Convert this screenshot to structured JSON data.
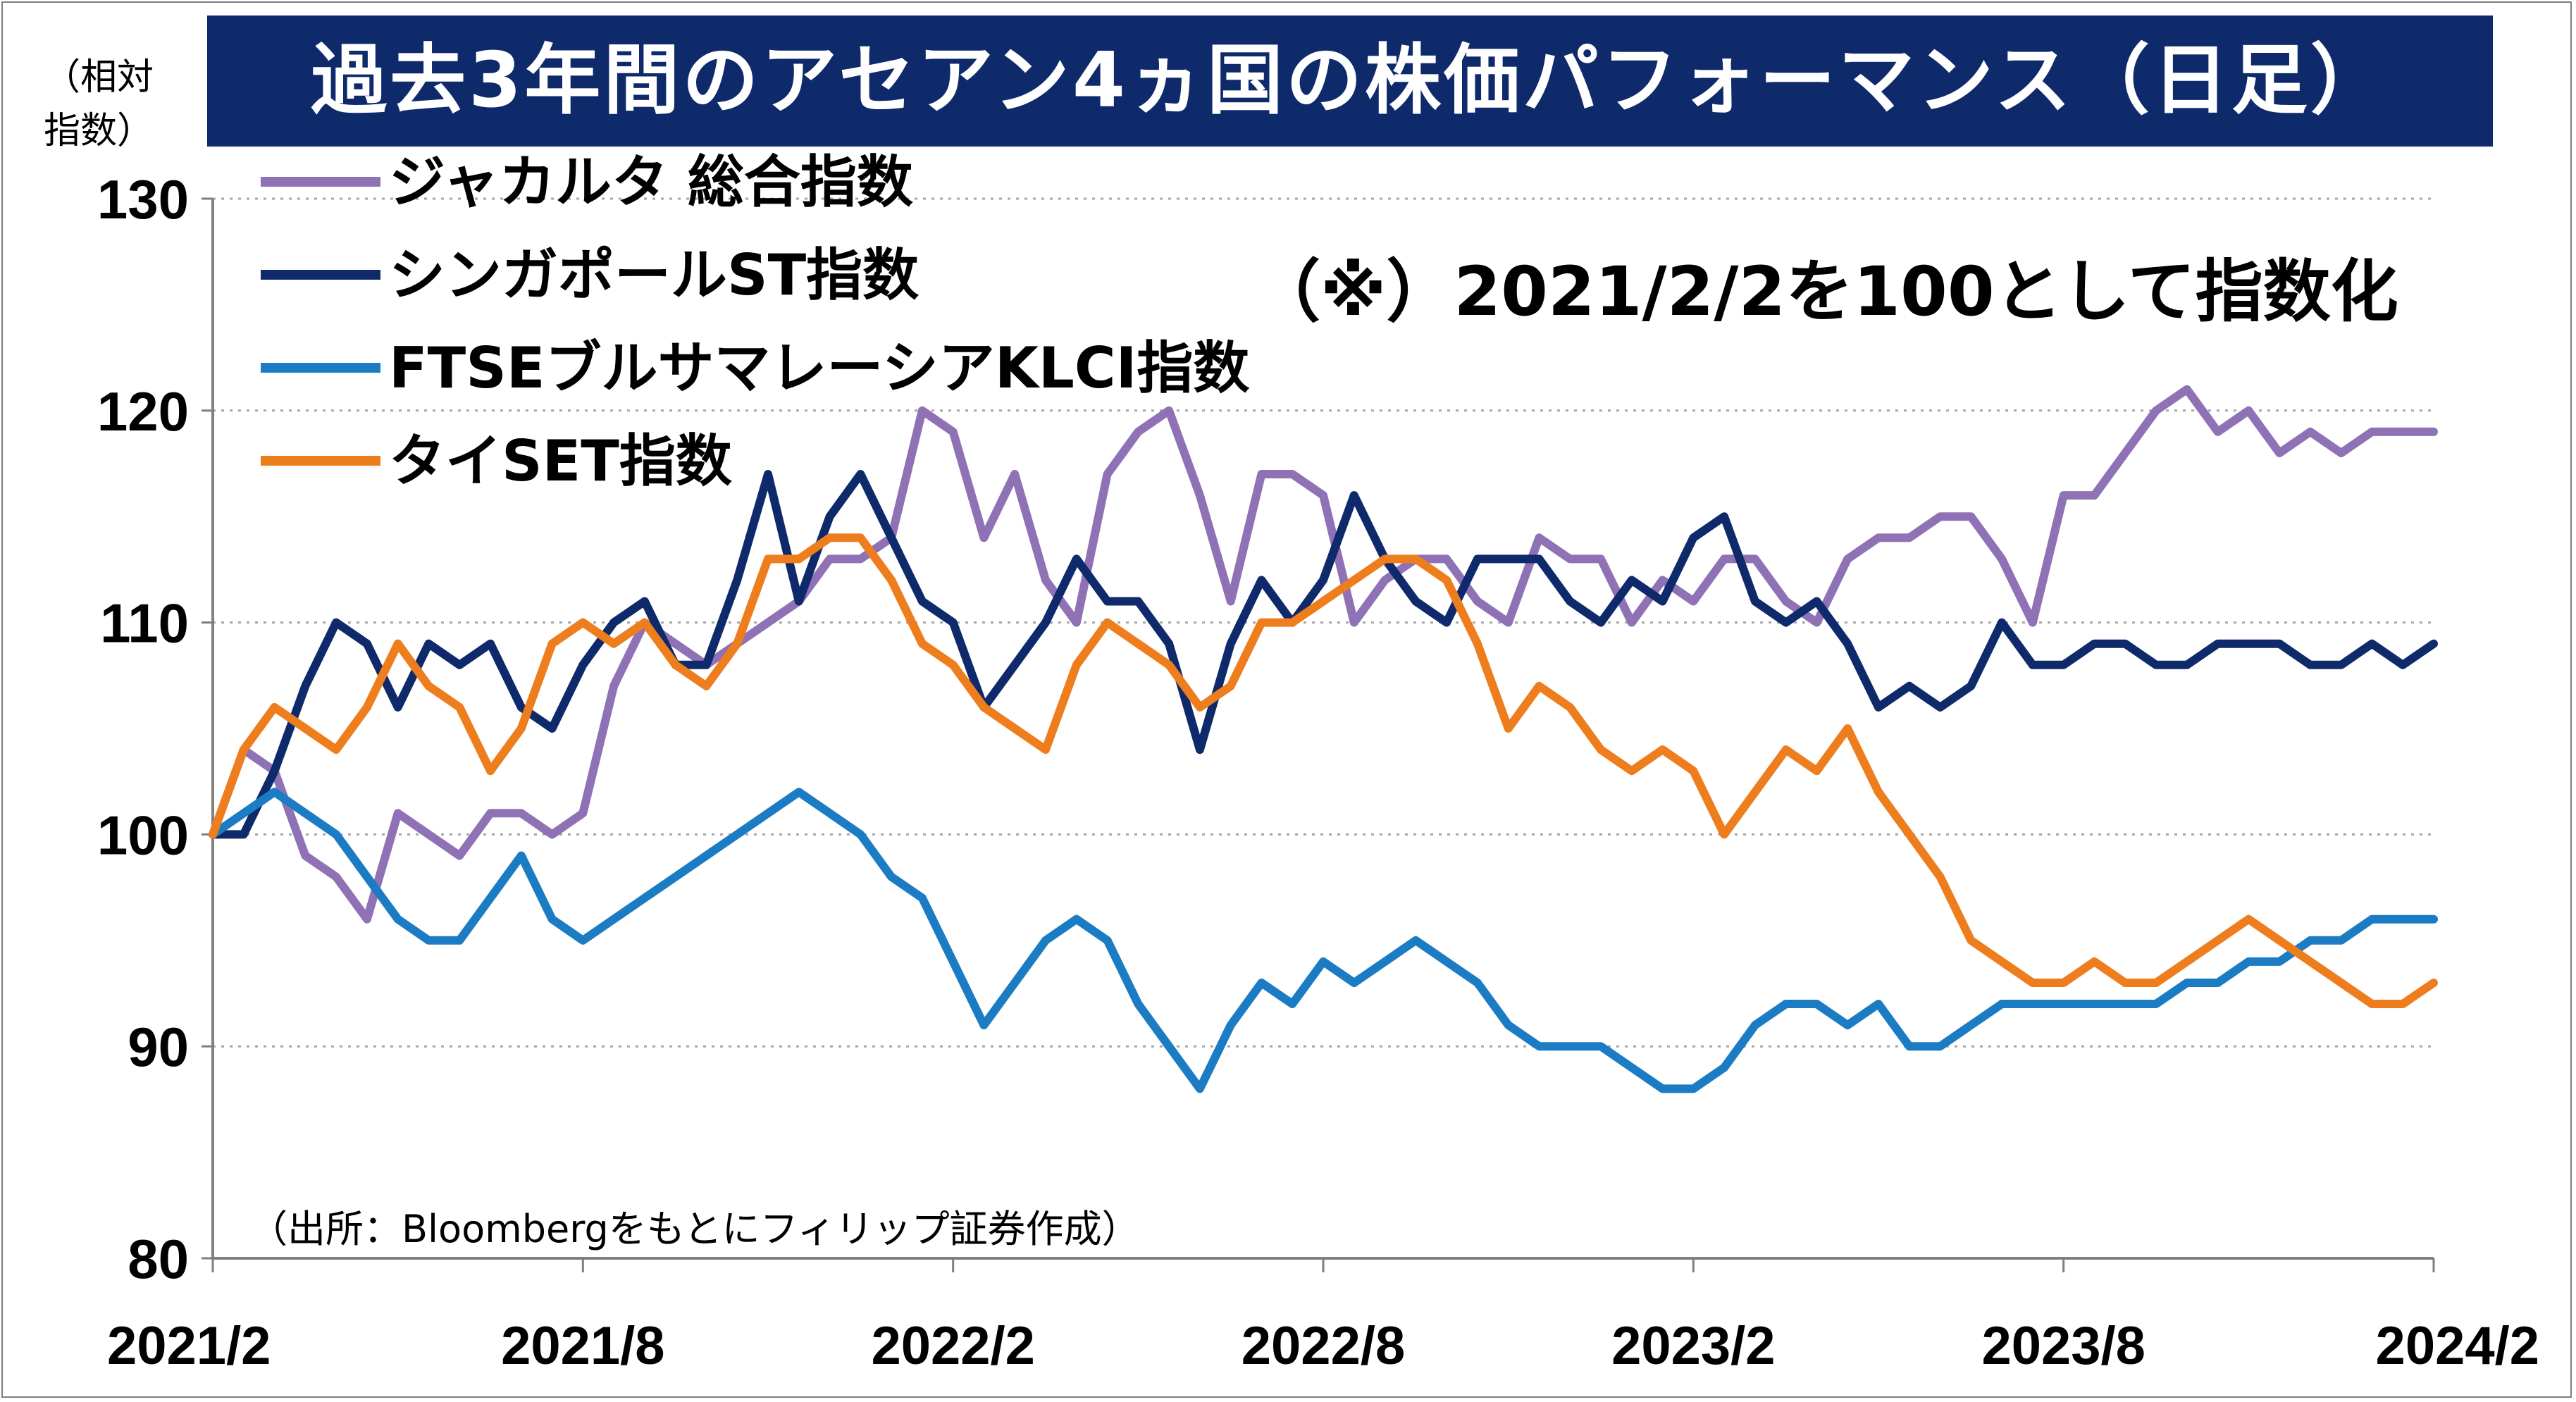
{
  "title": "過去3年間のアセアン4ヵ国の株価パフォーマンス（日足）",
  "y_unit_label": [
    "（相対",
    "指数）"
  ],
  "note": "（※）2021/2/2を100として指数化",
  "source": "（出所：Bloombergをもとにフィリップ証券作成）",
  "colors": {
    "title_bg": "#0e2a6b",
    "jakarta": "#8f72b5",
    "singapore": "#0e2a6b",
    "malaysia": "#1b7cc4",
    "thai": "#ee7d1e",
    "grid": "#a6a6a6"
  },
  "chart_data": {
    "type": "line",
    "y_ticks": [
      "130",
      "120",
      "110",
      "100",
      "90",
      "80"
    ],
    "x_ticks": [
      "2021/2",
      "2021/8",
      "2022/2",
      "2022/8",
      "2023/2",
      "2023/8",
      "2024/2"
    ],
    "ylim": [
      80,
      130
    ],
    "xlim": [
      0,
      36
    ],
    "grid": "horizontal-dotted",
    "legend_position": "top-left",
    "series": [
      {
        "name": "ジャカルタ 総合指数",
        "color_key": "jakarta",
        "x": [
          0,
          0.5,
          1,
          1.5,
          2,
          2.5,
          3,
          3.5,
          4,
          4.5,
          5,
          5.5,
          6,
          6.5,
          7,
          7.5,
          8,
          8.5,
          9,
          9.5,
          10,
          10.5,
          11,
          11.5,
          12,
          12.5,
          13,
          13.5,
          14,
          14.5,
          15,
          15.5,
          16,
          16.5,
          17,
          17.5,
          18,
          18.5,
          19,
          19.5,
          20,
          20.5,
          21,
          21.5,
          22,
          22.5,
          23,
          23.5,
          24,
          24.5,
          25,
          25.5,
          26,
          26.5,
          27,
          27.5,
          28,
          28.5,
          29,
          29.5,
          30,
          30.5,
          31,
          31.5,
          32,
          32.5,
          33,
          33.5,
          34,
          34.5,
          35,
          35.5,
          36
        ],
        "values": [
          100,
          104,
          103,
          99,
          98,
          96,
          101,
          100,
          99,
          101,
          101,
          100,
          101,
          107,
          110,
          109,
          108,
          109,
          110,
          111,
          113,
          113,
          114,
          120,
          119,
          114,
          117,
          112,
          110,
          117,
          119,
          120,
          116,
          111,
          117,
          117,
          116,
          110,
          112,
          113,
          113,
          111,
          110,
          114,
          113,
          113,
          110,
          112,
          111,
          113,
          113,
          111,
          110,
          113,
          114,
          114,
          115,
          115,
          113,
          110,
          116,
          116,
          118,
          120,
          121,
          119,
          120,
          118,
          119,
          118,
          119,
          119,
          119
        ]
      },
      {
        "name": "シンガポールST指数",
        "color_key": "singapore",
        "x": [
          0,
          0.5,
          1,
          1.5,
          2,
          2.5,
          3,
          3.5,
          4,
          4.5,
          5,
          5.5,
          6,
          6.5,
          7,
          7.5,
          8,
          8.5,
          9,
          9.5,
          10,
          10.5,
          11,
          11.5,
          12,
          12.5,
          13,
          13.5,
          14,
          14.5,
          15,
          15.5,
          16,
          16.5,
          17,
          17.5,
          18,
          18.5,
          19,
          19.5,
          20,
          20.5,
          21,
          21.5,
          22,
          22.5,
          23,
          23.5,
          24,
          24.5,
          25,
          25.5,
          26,
          26.5,
          27,
          27.5,
          28,
          28.5,
          29,
          29.5,
          30,
          30.5,
          31,
          31.5,
          32,
          32.5,
          33,
          33.5,
          34,
          34.5,
          35,
          35.5,
          36
        ],
        "values": [
          100,
          100,
          103,
          107,
          110,
          109,
          106,
          109,
          108,
          109,
          106,
          105,
          108,
          110,
          111,
          108,
          108,
          112,
          117,
          111,
          115,
          117,
          114,
          111,
          110,
          106,
          108,
          110,
          113,
          111,
          111,
          109,
          104,
          109,
          112,
          110,
          112,
          116,
          113,
          111,
          110,
          113,
          113,
          113,
          111,
          110,
          112,
          111,
          114,
          115,
          111,
          110,
          111,
          109,
          106,
          107,
          106,
          107,
          110,
          108,
          108,
          109,
          109,
          108,
          108,
          109,
          109,
          109,
          108,
          108,
          109,
          108,
          109
        ]
      },
      {
        "name": "FTSEブルサマレーシアKLCI指数",
        "color_key": "malaysia",
        "x": [
          0,
          0.5,
          1,
          1.5,
          2,
          2.5,
          3,
          3.5,
          4,
          4.5,
          5,
          5.5,
          6,
          6.5,
          7,
          7.5,
          8,
          8.5,
          9,
          9.5,
          10,
          10.5,
          11,
          11.5,
          12,
          12.5,
          13,
          13.5,
          14,
          14.5,
          15,
          15.5,
          16,
          16.5,
          17,
          17.5,
          18,
          18.5,
          19,
          19.5,
          20,
          20.5,
          21,
          21.5,
          22,
          22.5,
          23,
          23.5,
          24,
          24.5,
          25,
          25.5,
          26,
          26.5,
          27,
          27.5,
          28,
          28.5,
          29,
          29.5,
          30,
          30.5,
          31,
          31.5,
          32,
          32.5,
          33,
          33.5,
          34,
          34.5,
          35,
          35.5,
          36
        ],
        "values": [
          100,
          101,
          102,
          101,
          100,
          98,
          96,
          95,
          95,
          97,
          99,
          96,
          95,
          96,
          97,
          98,
          99,
          100,
          101,
          102,
          101,
          100,
          98,
          97,
          94,
          91,
          93,
          95,
          96,
          95,
          92,
          90,
          88,
          91,
          93,
          92,
          94,
          93,
          94,
          95,
          94,
          93,
          91,
          90,
          90,
          90,
          89,
          88,
          88,
          89,
          91,
          92,
          92,
          91,
          92,
          90,
          90,
          91,
          92,
          92,
          92,
          92,
          92,
          92,
          93,
          93,
          94,
          94,
          95,
          95,
          96,
          96,
          96
        ]
      },
      {
        "name": "タイSET指数",
        "color_key": "thai",
        "x": [
          0,
          0.5,
          1,
          1.5,
          2,
          2.5,
          3,
          3.5,
          4,
          4.5,
          5,
          5.5,
          6,
          6.5,
          7,
          7.5,
          8,
          8.5,
          9,
          9.5,
          10,
          10.5,
          11,
          11.5,
          12,
          12.5,
          13,
          13.5,
          14,
          14.5,
          15,
          15.5,
          16,
          16.5,
          17,
          17.5,
          18,
          18.5,
          19,
          19.5,
          20,
          20.5,
          21,
          21.5,
          22,
          22.5,
          23,
          23.5,
          24,
          24.5,
          25,
          25.5,
          26,
          26.5,
          27,
          27.5,
          28,
          28.5,
          29,
          29.5,
          30,
          30.5,
          31,
          31.5,
          32,
          32.5,
          33,
          33.5,
          34,
          34.5,
          35,
          35.5,
          36
        ],
        "values": [
          100,
          104,
          106,
          105,
          104,
          106,
          109,
          107,
          106,
          103,
          105,
          109,
          110,
          109,
          110,
          108,
          107,
          109,
          113,
          113,
          114,
          114,
          112,
          109,
          108,
          106,
          105,
          104,
          108,
          110,
          109,
          108,
          106,
          107,
          110,
          110,
          111,
          112,
          113,
          113,
          112,
          109,
          105,
          107,
          106,
          104,
          103,
          104,
          103,
          100,
          102,
          104,
          103,
          105,
          102,
          100,
          98,
          95,
          94,
          93,
          93,
          94,
          93,
          93,
          94,
          95,
          96,
          95,
          94,
          93,
          92,
          92,
          93
        ]
      }
    ]
  }
}
